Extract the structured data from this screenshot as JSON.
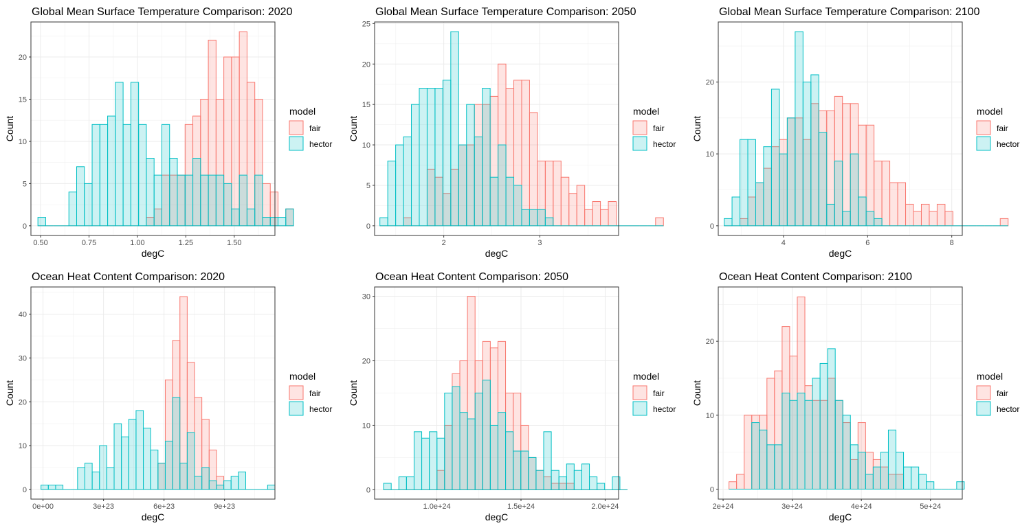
{
  "figure": {
    "legend_title": "model",
    "colors": {
      "fair_fill": "#F8766D",
      "fair_outline": "#F8766D",
      "hector_fill": "#00BFC4",
      "hector_outline": "#00BFC4",
      "fill_alpha": 0.2
    }
  },
  "chart_data": [
    {
      "type": "bar",
      "title": "Global Mean Surface Temperature Comparison: 2020",
      "xlabel": "degC",
      "ylabel": "Count",
      "xlim": [
        0.45,
        1.71
      ],
      "ylim": [
        -1.15,
        24.15
      ],
      "xticks": [
        0.5,
        0.75,
        1.0,
        1.25,
        1.5
      ],
      "xtick_labels": [
        "0.50",
        "0.75",
        "1.00",
        "1.25",
        "1.50"
      ],
      "yticks": [
        0,
        5,
        10,
        15,
        20
      ],
      "ytick_labels": [
        "0",
        "5",
        "10",
        "15",
        "20"
      ],
      "grid": true,
      "legend_position": "right",
      "bin_start": 0.486,
      "bin_width": 0.04,
      "series": [
        {
          "name": "fair",
          "values": [
            0,
            0,
            0,
            0,
            0,
            0,
            0,
            0,
            0,
            0,
            0,
            0,
            0,
            0,
            1,
            2,
            6,
            6,
            6,
            12,
            13,
            15,
            22,
            15,
            20,
            20,
            23,
            17,
            15,
            5,
            4,
            0,
            2
          ]
        },
        {
          "name": "hector",
          "values": [
            1,
            0,
            0,
            0,
            4,
            7,
            5,
            12,
            12,
            13,
            17,
            12,
            17,
            12,
            8,
            6,
            12,
            8,
            6,
            6,
            8,
            6,
            6,
            6,
            5,
            2,
            6,
            2,
            6,
            1,
            1,
            1,
            2
          ]
        }
      ]
    },
    {
      "type": "bar",
      "title": "Global Mean Surface Temperature Comparison: 2050",
      "xlabel": "degC",
      "ylabel": "Count",
      "xlim": [
        1.28,
        3.82
      ],
      "ylim": [
        -1.2,
        25.2
      ],
      "xticks": [
        2,
        3
      ],
      "xtick_labels": [
        "2",
        "3"
      ],
      "yticks": [
        0,
        5,
        10,
        15,
        20,
        25
      ],
      "ytick_labels": [
        "0",
        "5",
        "10",
        "15",
        "20",
        "25"
      ],
      "grid": true,
      "legend_position": "right",
      "bin_start": 1.335,
      "bin_width": 0.082,
      "series": [
        {
          "name": "fair",
          "values": [
            0,
            0,
            0,
            1,
            0,
            0,
            7,
            6,
            4,
            7,
            10,
            10,
            15,
            15,
            16,
            20,
            17,
            18,
            18,
            14,
            8,
            8,
            8,
            6,
            4,
            5,
            2,
            3,
            2,
            3,
            0,
            0,
            0,
            0,
            0,
            1
          ]
        },
        {
          "name": "hector",
          "values": [
            1,
            8,
            10,
            11,
            15,
            17,
            17,
            17,
            18,
            24,
            10,
            15,
            11,
            17,
            6,
            10,
            6,
            5,
            2,
            2,
            2,
            1,
            0,
            0,
            0,
            0,
            0,
            0,
            0,
            0,
            0,
            0,
            0,
            0,
            0,
            0
          ]
        }
      ]
    },
    {
      "type": "bar",
      "title": "Global Mean Surface Temperature Comparison: 2100",
      "xlabel": "degC",
      "ylabel": "Count",
      "xlim": [
        2.45,
        8.25
      ],
      "ylim": [
        -1.35,
        28.35
      ],
      "xticks": [
        4,
        6,
        8
      ],
      "xtick_labels": [
        "4",
        "6",
        "8"
      ],
      "yticks": [
        0,
        10,
        20
      ],
      "ytick_labels": [
        "0",
        "10",
        "20"
      ],
      "grid": true,
      "legend_position": "right",
      "bin_start": 2.59,
      "bin_width": 0.1875,
      "series": [
        {
          "name": "fair",
          "values": [
            0,
            0,
            1,
            4,
            6,
            8,
            11,
            12,
            15,
            15,
            12,
            17,
            16,
            16,
            18,
            17,
            17,
            14,
            14,
            9,
            9,
            6,
            6,
            3,
            2,
            3,
            2,
            3,
            2,
            0,
            0,
            0,
            0,
            0,
            0,
            1
          ]
        },
        {
          "name": "hector",
          "values": [
            1,
            4,
            12,
            12,
            6,
            11,
            19,
            10,
            15,
            27,
            20,
            21,
            13,
            3,
            9,
            2,
            10,
            4,
            2,
            1,
            0,
            0,
            0,
            0,
            0,
            0,
            0,
            0,
            0,
            0,
            0,
            0,
            0,
            0,
            0,
            0
          ]
        }
      ]
    },
    {
      "type": "bar",
      "title": "Ocean Heat Content Comparison: 2020",
      "xlabel": "degC",
      "ylabel": "Count",
      "xlim": [
        -6e+22,
        1.15e+24
      ],
      "ylim": [
        -2.2,
        46.2
      ],
      "xticks": [
        0,
        3e+23,
        6e+23,
        9e+23
      ],
      "xtick_labels": [
        "0e+00",
        "3e+23",
        "6e+23",
        "9e+23"
      ],
      "yticks": [
        0,
        10,
        20,
        30,
        40
      ],
      "ytick_labels": [
        "0",
        "10",
        "20",
        "30",
        "40"
      ],
      "grid": true,
      "legend_position": "right",
      "bin_start": -1e+22,
      "bin_width": 3.625e+22,
      "series": [
        {
          "name": "fair",
          "values": [
            0,
            0,
            0,
            0,
            0,
            0,
            0,
            0,
            0,
            0,
            0,
            0,
            0,
            0,
            0,
            0,
            6,
            25,
            34,
            44,
            29,
            21,
            16,
            9,
            3,
            0,
            0,
            0,
            0,
            0,
            0,
            0
          ]
        },
        {
          "name": "hector",
          "values": [
            1,
            1,
            1,
            0,
            0,
            5,
            6,
            4,
            10,
            5,
            15,
            12,
            16,
            18,
            14,
            9,
            6,
            11,
            21,
            6,
            13,
            3,
            5,
            2,
            1,
            2,
            3,
            4,
            0,
            0,
            0,
            1
          ]
        }
      ]
    },
    {
      "type": "bar",
      "title": "Ocean Heat Content Comparison: 2050",
      "xlabel": "degC",
      "ylabel": "Count",
      "xlim": [
        6.3e+23,
        2.08e+24
      ],
      "ylim": [
        -1.45,
        31.45
      ],
      "xticks": [
        1e+24,
        1.5e+24,
        2e+24
      ],
      "xtick_labels": [
        "1.0e+24",
        "1.5e+24",
        "2.0e+24"
      ],
      "yticks": [
        0,
        10,
        20,
        30
      ],
      "ytick_labels": [
        "0",
        "10",
        "20",
        "30"
      ],
      "grid": true,
      "legend_position": "right",
      "bin_start": 6.835e+23,
      "bin_width": 4.53e+22,
      "series": [
        {
          "name": "fair",
          "values": [
            0,
            0,
            0,
            0,
            0,
            0,
            0,
            3,
            10,
            18,
            20,
            30,
            20,
            23,
            22,
            23,
            15,
            15,
            10,
            5,
            3,
            2,
            1,
            1,
            1,
            0,
            0,
            0,
            0,
            0,
            0,
            0
          ]
        },
        {
          "name": "hector",
          "values": [
            1,
            0,
            2,
            2,
            9,
            8,
            9,
            8,
            15,
            16,
            12,
            11,
            15,
            17,
            10,
            12,
            9,
            6,
            6,
            5,
            3,
            9,
            3,
            2,
            4,
            3,
            4,
            2,
            1,
            0,
            2,
            0
          ]
        }
      ]
    },
    {
      "type": "bar",
      "title": "Ocean Heat Content Comparison: 2100",
      "xlabel": "degC",
      "ylabel": "Count",
      "xlim": [
        1.93e+24,
        5.46e+24
      ],
      "ylim": [
        -1.35,
        27.35
      ],
      "xticks": [
        2e+24,
        3e+24,
        4e+24,
        5e+24
      ],
      "xtick_labels": [
        "2e+24",
        "3e+24",
        "4e+24",
        "5e+24"
      ],
      "yticks": [
        0,
        10,
        20
      ],
      "ytick_labels": [
        "0",
        "10",
        "20"
      ],
      "grid": true,
      "legend_position": "right",
      "bin_start": 2.085e+24,
      "bin_width": 1.098e+23,
      "series": [
        {
          "name": "fair",
          "values": [
            1,
            2,
            10,
            10,
            10,
            15,
            16,
            22,
            18,
            26,
            14,
            12,
            12,
            15,
            12,
            9,
            4,
            9,
            5,
            4,
            3,
            2,
            2,
            0,
            0,
            0,
            0,
            0,
            0,
            0,
            0
          ]
        },
        {
          "name": "hector",
          "values": [
            0,
            0,
            0,
            9,
            8,
            6,
            6,
            13,
            12,
            13,
            12,
            15,
            17,
            19,
            12,
            10,
            6,
            5,
            2,
            3,
            5,
            8,
            5,
            3,
            3,
            2,
            1,
            0,
            0,
            0,
            1
          ]
        }
      ]
    }
  ]
}
